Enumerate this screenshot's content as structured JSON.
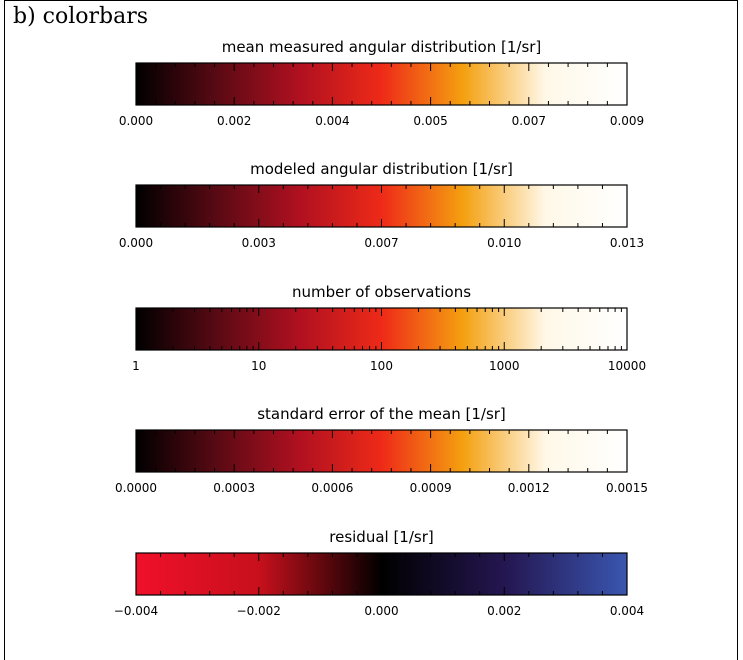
{
  "panel_label": "b) colorbars",
  "chart_data": [
    {
      "type": "colorbar",
      "title": "mean measured angular distribution [1/sr]",
      "scale": "linear",
      "range": [
        0.0,
        0.009
      ],
      "tick_labels": [
        "0.000",
        "0.002",
        "0.004",
        "0.005",
        "0.007",
        "0.009"
      ],
      "colormap": [
        "#000000",
        "#5a0a14",
        "#b01020",
        "#ee2a18",
        "#f4a010",
        "#fff8e8",
        "#ffffff"
      ]
    },
    {
      "type": "colorbar",
      "title": "modeled angular distribution [1/sr]",
      "scale": "linear",
      "range": [
        0.0,
        0.013
      ],
      "tick_labels": [
        "0.000",
        "0.003",
        "0.007",
        "0.010",
        "0.013"
      ],
      "colormap": [
        "#000000",
        "#5a0a14",
        "#b01020",
        "#ee2a18",
        "#f4a010",
        "#fff8e8",
        "#ffffff"
      ]
    },
    {
      "type": "colorbar",
      "title": "number of observations",
      "scale": "log",
      "range": [
        1,
        10000
      ],
      "tick_labels": [
        "1",
        "10",
        "100",
        "1000",
        "10000"
      ],
      "colormap": [
        "#000000",
        "#5a0a14",
        "#b01020",
        "#ee2a18",
        "#f4a010",
        "#fff8e8",
        "#ffffff"
      ]
    },
    {
      "type": "colorbar",
      "title": "standard error of the mean [1/sr]",
      "scale": "linear",
      "range": [
        0.0,
        0.0015
      ],
      "tick_labels": [
        "0.0000",
        "0.0003",
        "0.0006",
        "0.0009",
        "0.0012",
        "0.0015"
      ],
      "colormap": [
        "#000000",
        "#5a0a14",
        "#b01020",
        "#ee2a18",
        "#f4a010",
        "#fff8e8",
        "#ffffff"
      ]
    },
    {
      "type": "colorbar",
      "title": "residual [1/sr]",
      "scale": "linear",
      "range": [
        -0.004,
        0.004
      ],
      "tick_labels": [
        "−0.004",
        "−0.002",
        "0.000",
        "0.002",
        "0.004"
      ],
      "colormap": [
        "#f0102a",
        "#c8101c",
        "#000000",
        "#241650",
        "#3a56b0"
      ]
    }
  ]
}
